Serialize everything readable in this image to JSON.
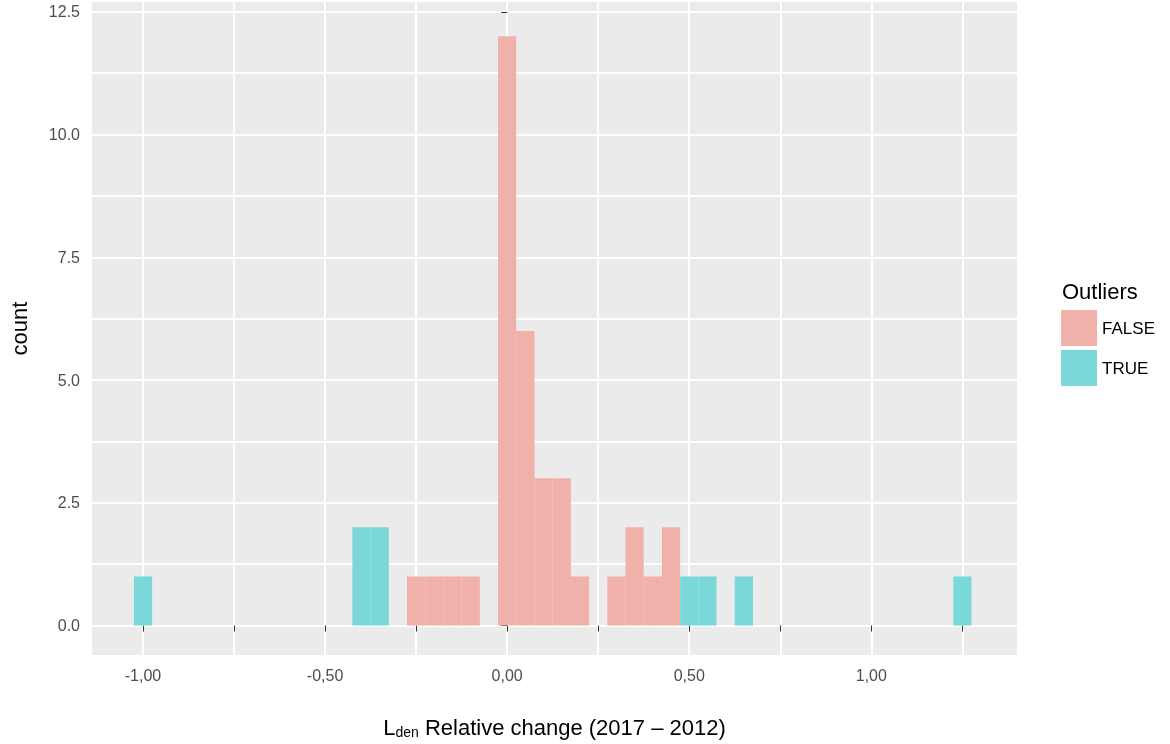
{
  "chart_data": {
    "type": "histogram",
    "xlabel": "L$_{den}$ Relative change (2017 – 2012)",
    "ylabel": "count",
    "legend_title": "Outliers",
    "bins": [
      -1.025,
      -0.975,
      -0.925,
      -0.875,
      -0.825,
      -0.775,
      -0.725,
      -0.675,
      -0.625,
      -0.575,
      -0.525,
      -0.475,
      -0.425,
      -0.375,
      -0.325,
      -0.275,
      -0.225,
      -0.175,
      -0.125,
      -0.075,
      -0.025,
      0.025,
      0.075,
      0.125,
      0.175,
      0.225,
      0.275,
      0.325,
      0.375,
      0.425,
      0.475,
      0.525,
      0.575,
      0.625,
      0.675,
      0.725,
      0.775,
      0.825,
      0.875,
      0.925,
      0.975,
      1.025,
      1.075,
      1.125,
      1.175,
      1.225,
      1.275
    ],
    "series": [
      {
        "name": "FALSE",
        "color": "#f1b1ab",
        "values": [
          0,
          0,
          0,
          0,
          0,
          0,
          0,
          0,
          0,
          0,
          0,
          0,
          0,
          0,
          0,
          1,
          1,
          1,
          1,
          0,
          12,
          6,
          3,
          3,
          1,
          0,
          1,
          2,
          1,
          2,
          0,
          0,
          0,
          0,
          0,
          0,
          0,
          0,
          0,
          0,
          0,
          0,
          0,
          0,
          0,
          0
        ]
      },
      {
        "name": "TRUE",
        "color": "#7ad8d9",
        "values": [
          1,
          0,
          0,
          0,
          0,
          0,
          0,
          0,
          0,
          0,
          0,
          0,
          2,
          2,
          0,
          0,
          0,
          0,
          0,
          0,
          0,
          0,
          0,
          0,
          0,
          0,
          0,
          0,
          0,
          0,
          1,
          1,
          0,
          1,
          0,
          0,
          0,
          0,
          0,
          0,
          0,
          0,
          0,
          0,
          0,
          1
        ]
      }
    ],
    "xlim": [
      -1.14,
      1.4
    ],
    "xticks": [
      {
        "value": -1,
        "label": "-1,00"
      },
      {
        "value": -0.75,
        "label": null
      },
      {
        "value": -0.5,
        "label": "-0,50"
      },
      {
        "value": -0.25,
        "label": null
      },
      {
        "value": 0,
        "label": "0,00"
      },
      {
        "value": 0.25,
        "label": null
      },
      {
        "value": 0.5,
        "label": "0,50"
      },
      {
        "value": 0.75,
        "label": null
      },
      {
        "value": 1,
        "label": "1,00"
      },
      {
        "value": 1.25,
        "label": null
      }
    ],
    "ylim": [
      -0.6,
      12.7
    ],
    "yticks": [
      {
        "value": 0,
        "label": "0.0"
      },
      {
        "value": 1.25,
        "label": null
      },
      {
        "value": 2.5,
        "label": "2.5"
      },
      {
        "value": 3.75,
        "label": null
      },
      {
        "value": 5,
        "label": "5.0"
      },
      {
        "value": 6.25,
        "label": null
      },
      {
        "value": 7.5,
        "label": "7.5"
      },
      {
        "value": 8.75,
        "label": null
      },
      {
        "value": 10,
        "label": "10.0"
      },
      {
        "value": 11.25,
        "label": null
      },
      {
        "value": 12.5,
        "label": "12.5"
      }
    ],
    "grid": true,
    "legend": "right"
  }
}
